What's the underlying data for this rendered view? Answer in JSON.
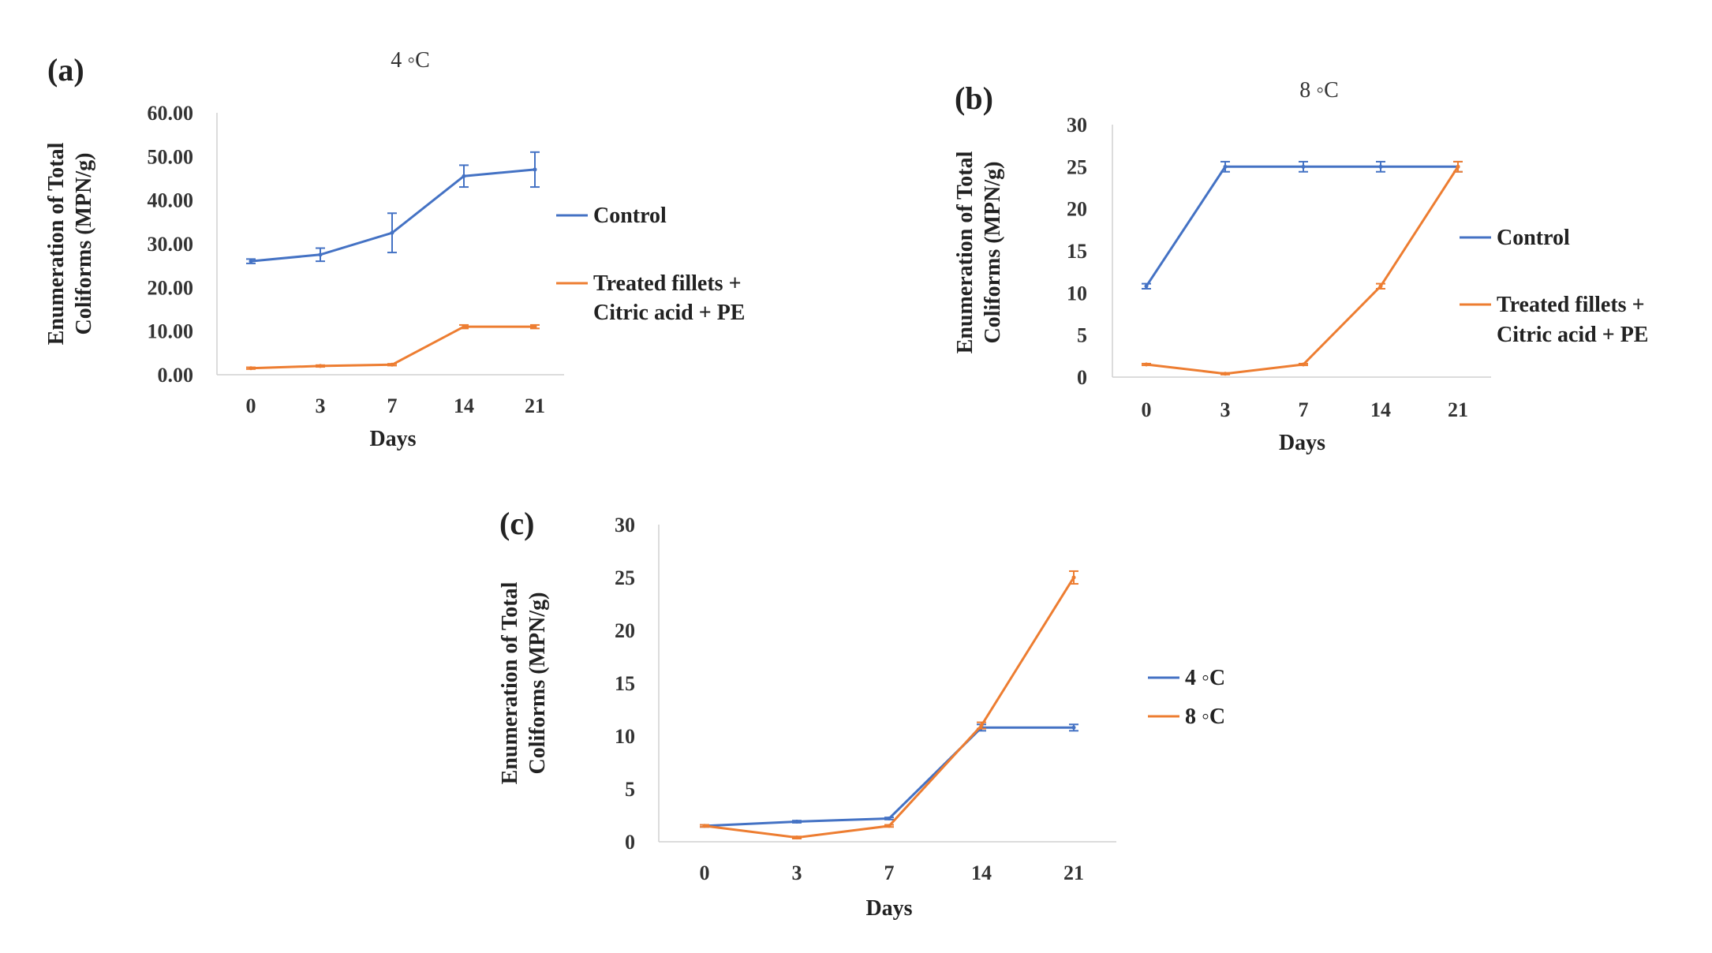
{
  "chart_data": [
    {
      "panel_label": "(a)",
      "type": "line",
      "title": "4 ◦C",
      "xlabel": "Days",
      "ylabel": [
        "Enumeration of Total",
        "Coliforms (MPN/g)"
      ],
      "categories": [
        "0",
        "3",
        "7",
        "14",
        "21"
      ],
      "ylim": [
        0,
        60
      ],
      "yticks": [
        "0.00",
        "10.00",
        "20.00",
        "30.00",
        "40.00",
        "50.00",
        "60.00"
      ],
      "grid": false,
      "legend_position": "right",
      "series": [
        {
          "name": "Control",
          "color": "#4472c4",
          "values": [
            26,
            27.5,
            32.5,
            45.5,
            47
          ],
          "errors": [
            0.5,
            1.5,
            4.5,
            2.5,
            4
          ]
        },
        {
          "name": "Treated fillets + Citric acid + PE",
          "color": "#ed7d31",
          "values": [
            1.5,
            2,
            2.3,
            11,
            11
          ],
          "errors": [
            0.2,
            0.2,
            0.2,
            0.4,
            0.4
          ]
        }
      ]
    },
    {
      "panel_label": "(b)",
      "type": "line",
      "title": "8 ◦C",
      "xlabel": "Days",
      "ylabel": [
        "Enumeration of Total",
        "Coliforms (MPN/g)"
      ],
      "categories": [
        "0",
        "3",
        "7",
        "14",
        "21"
      ],
      "ylim": [
        0,
        30
      ],
      "yticks": [
        "0",
        "5",
        "10",
        "15",
        "20",
        "25",
        "30"
      ],
      "grid": false,
      "legend_position": "right",
      "series": [
        {
          "name": "Control",
          "color": "#4472c4",
          "values": [
            10.8,
            25,
            25,
            25,
            25
          ],
          "errors": [
            0.3,
            0.6,
            0.6,
            0.6,
            0.6
          ]
        },
        {
          "name": "Treated fillets + Citric acid + PE",
          "color": "#ed7d31",
          "values": [
            1.5,
            0.4,
            1.5,
            10.8,
            25
          ],
          "errors": [
            0.1,
            0.1,
            0.1,
            0.3,
            0.6
          ]
        }
      ]
    },
    {
      "panel_label": "(c)",
      "type": "line",
      "title": "",
      "xlabel": "Days",
      "ylabel": [
        "Enumeration of Total",
        "Coliforms (MPN/g)"
      ],
      "categories": [
        "0",
        "3",
        "7",
        "14",
        "21"
      ],
      "ylim": [
        0,
        30
      ],
      "yticks": [
        "0",
        "5",
        "10",
        "15",
        "20",
        "25",
        "30"
      ],
      "grid": false,
      "legend_position": "right",
      "series": [
        {
          "name": "4 ◦C",
          "color": "#4472c4",
          "values": [
            1.5,
            1.9,
            2.2,
            10.8,
            10.8
          ],
          "errors": [
            0.1,
            0.1,
            0.1,
            0.3,
            0.3
          ]
        },
        {
          "name": "8 ◦C",
          "color": "#ed7d31",
          "values": [
            1.5,
            0.4,
            1.5,
            11,
            25
          ],
          "errors": [
            0.1,
            0.1,
            0.1,
            0.3,
            0.6
          ]
        }
      ]
    }
  ]
}
